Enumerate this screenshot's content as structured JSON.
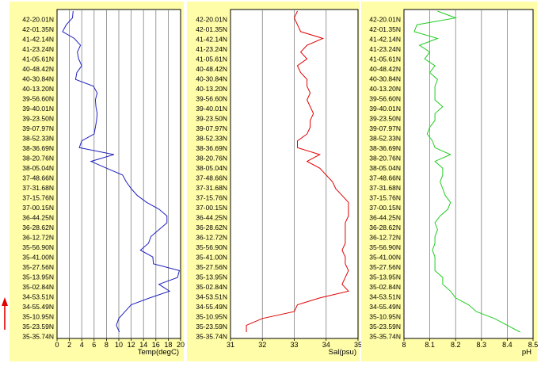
{
  "latitude_labels": [
    "42-20.01N",
    "42-01.35N",
    "41-42.14N",
    "41-23.24N",
    "41-05.61N",
    "40-48.42N",
    "40-30.84N",
    "40-13.20N",
    "39-56.60N",
    "39-40.01N",
    "39-23.50N",
    "39-07.97N",
    "38-52.33N",
    "38-36.69N",
    "38-20.76N",
    "38-05.04N",
    "37-48.66N",
    "37-31.68N",
    "37-15.76N",
    "37-00.15N",
    "36-44.25N",
    "36-28.62N",
    "36-12.72N",
    "35-56.90N",
    "35-41.00N",
    "35-27.56N",
    "35-13.95N",
    "35-02.84N",
    "34-53.51N",
    "34-55.49N",
    "35-10.95N",
    "35-23.59N",
    "35-35.74N"
  ],
  "colors": {
    "panel_bg": "#fffda8",
    "plot_bg": "#ffffff",
    "grid": "#808080",
    "temp": "#1f1fbf",
    "sal": "#e00000",
    "ph": "#22cc22",
    "arrow": "#e00000"
  },
  "chart_data": [
    {
      "type": "line",
      "orientation": "horizontal-values",
      "xlabel": "Temp(degC)",
      "xlim": [
        0,
        20
      ],
      "xticks": [
        "0",
        "2",
        "4",
        "6",
        "8",
        "10",
        "12",
        "14",
        "16",
        "18",
        "20"
      ],
      "series": [
        {
          "color": "#1f1fbf",
          "values": [
            2.6,
            2.5,
            1.5,
            0.9,
            2.8,
            3.8,
            3.3,
            3.5,
            4.0,
            3.2,
            3.0,
            5.9,
            6.5,
            6.2,
            6.3,
            6.5,
            6.4,
            6.2,
            6.0,
            4.0,
            3.6,
            9.2,
            5.5,
            8.0,
            10.6,
            11.2,
            12.0,
            13.0,
            14.5,
            16.5,
            17.8,
            17.8,
            16.5,
            15.2,
            14.8,
            13.5,
            15.5,
            15.6,
            19.8,
            19.5,
            16.5,
            18.2,
            15.0,
            12.0,
            11.0,
            10.0,
            9.6,
            10.1
          ]
        }
      ]
    },
    {
      "type": "line",
      "orientation": "horizontal-values",
      "xlabel": "Sal(psu)",
      "xlim": [
        31,
        35
      ],
      "xticks": [
        "31",
        "32",
        "33",
        "34",
        "35"
      ],
      "series": [
        {
          "color": "#e00000",
          "values": [
            33.1,
            33.0,
            33.1,
            33.2,
            33.9,
            33.4,
            33.2,
            33.4,
            33.1,
            33.2,
            33.4,
            33.4,
            33.5,
            33.4,
            33.5,
            33.6,
            33.5,
            33.5,
            33.4,
            33.1,
            33.1,
            33.8,
            33.4,
            33.8,
            34.0,
            34.2,
            34.3,
            34.5,
            34.7,
            34.7,
            34.7,
            34.6,
            34.6,
            34.6,
            34.6,
            34.5,
            34.6,
            34.6,
            34.7,
            34.6,
            34.5,
            34.7,
            33.8,
            33.1,
            33.0,
            32.0,
            31.5,
            31.5
          ]
        }
      ]
    },
    {
      "type": "line",
      "orientation": "horizontal-values",
      "xlabel": "pH",
      "xlim": [
        8,
        8.5
      ],
      "xticks": [
        "8",
        "8.1",
        "8.2",
        "8.3",
        "8.4",
        "8.5"
      ],
      "series": [
        {
          "color": "#22cc22",
          "values": [
            8.13,
            8.2,
            8.05,
            8.04,
            8.13,
            8.06,
            8.1,
            8.08,
            8.12,
            8.1,
            8.13,
            8.12,
            8.12,
            8.12,
            8.15,
            8.12,
            8.12,
            8.1,
            8.09,
            8.11,
            8.12,
            8.18,
            8.12,
            8.15,
            8.15,
            8.14,
            8.15,
            8.16,
            8.18,
            8.17,
            8.14,
            8.12,
            8.13,
            8.12,
            8.12,
            8.11,
            8.12,
            8.12,
            8.12,
            8.15,
            8.15,
            8.18,
            8.2,
            8.25,
            8.28,
            8.35,
            8.4,
            8.45
          ]
        }
      ]
    }
  ]
}
